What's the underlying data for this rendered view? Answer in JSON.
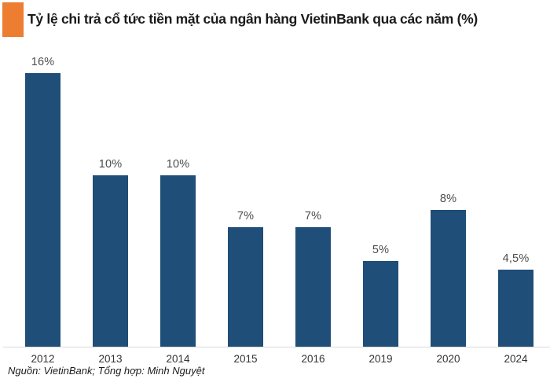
{
  "header": {
    "title": "Tỷ lệ chi trả cổ tức tiền mặt của ngân hàng VietinBank qua các năm (%)",
    "accent_color": "#ED7D31"
  },
  "chart_data": {
    "type": "bar",
    "title": "Tỷ lệ chi trả cổ tức tiền mặt của ngân hàng VietinBank qua các năm (%)",
    "categories": [
      "2012",
      "2013",
      "2014",
      "2015",
      "2016",
      "2019",
      "2020",
      "2024"
    ],
    "values": [
      16,
      10,
      10,
      7,
      7,
      5,
      8,
      4.5
    ],
    "value_labels": [
      "16%",
      "10%",
      "10%",
      "7%",
      "7%",
      "5%",
      "8%",
      "4,5%"
    ],
    "xlabel": "",
    "ylabel": "",
    "ylim": [
      0,
      16
    ],
    "grid": false,
    "legend": false,
    "bar_color": "#1F4E79",
    "axis_line_color": "#D9D9D9",
    "value_label_color": "#4d4d4d",
    "tick_label_color": "#333333"
  },
  "footer": {
    "source": "Nguồn: VietinBank; Tổng hợp: Minh Nguyệt"
  }
}
